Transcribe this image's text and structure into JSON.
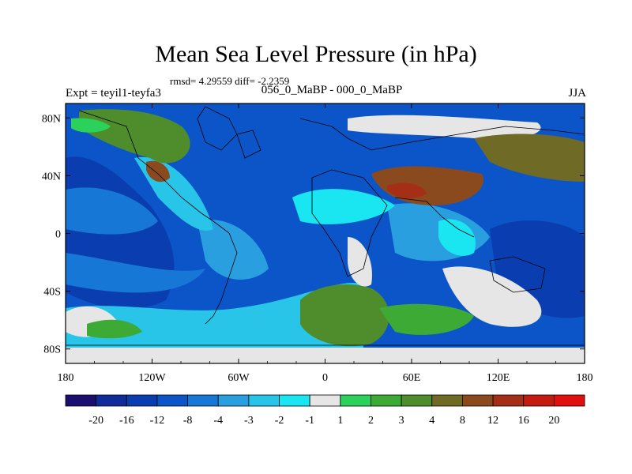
{
  "title": "Mean Sea Level Pressure (in hPa)",
  "stats": "rmsd= 4.29559 diff= -2.2359",
  "left_label": "Expt = teyil1-teyfa3",
  "center_label": "056_0_MaBP - 000_0_MaBP",
  "right_label": "JJA",
  "x_ticks": [
    "180",
    "120W",
    "60W",
    "0",
    "60E",
    "120E",
    "180"
  ],
  "y_ticks": [
    "80N",
    "40N",
    "0",
    "40S",
    "80S"
  ],
  "colorbar": {
    "labels": [
      "-20",
      "-16",
      "-12",
      "-8",
      "-4",
      "-3",
      "-2",
      "-1",
      "1",
      "2",
      "3",
      "4",
      "8",
      "12",
      "16",
      "20"
    ],
    "colors": [
      "#1a0f6e",
      "#102c9a",
      "#0a3eb0",
      "#0b55c8",
      "#1677d6",
      "#2a9fe0",
      "#28c5e8",
      "#19e6f0",
      "#e6e6e6",
      "#2bd15a",
      "#3caa35",
      "#4f8d2c",
      "#6f6b26",
      "#8b4a1d",
      "#a52e16",
      "#c41a10",
      "#e01010"
    ]
  }
}
